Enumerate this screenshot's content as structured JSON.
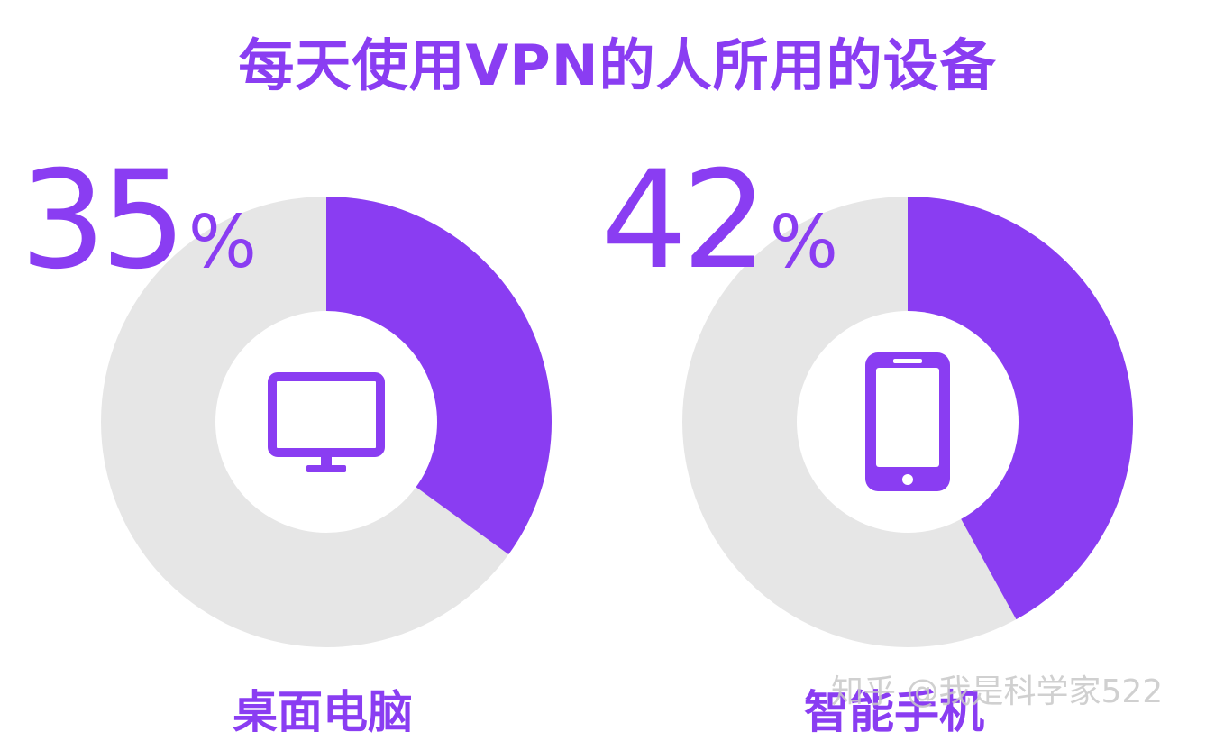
{
  "title": "每天使用VPN的人所用的设备",
  "chart_data": [
    {
      "type": "pie",
      "label": "桌面电脑",
      "percent_text": "35",
      "percent_symbol": "%",
      "value": 35,
      "icon": "desktop-monitor-icon",
      "colors": {
        "fill": "#8a3df2",
        "rest": "#e6e6e6"
      }
    },
    {
      "type": "pie",
      "label": "智能手机",
      "percent_text": "42",
      "percent_symbol": "%",
      "value": 42,
      "icon": "smartphone-icon",
      "colors": {
        "fill": "#8a3df2",
        "rest": "#e6e6e6"
      }
    }
  ],
  "watermark": "知乎 @我是科学家522"
}
